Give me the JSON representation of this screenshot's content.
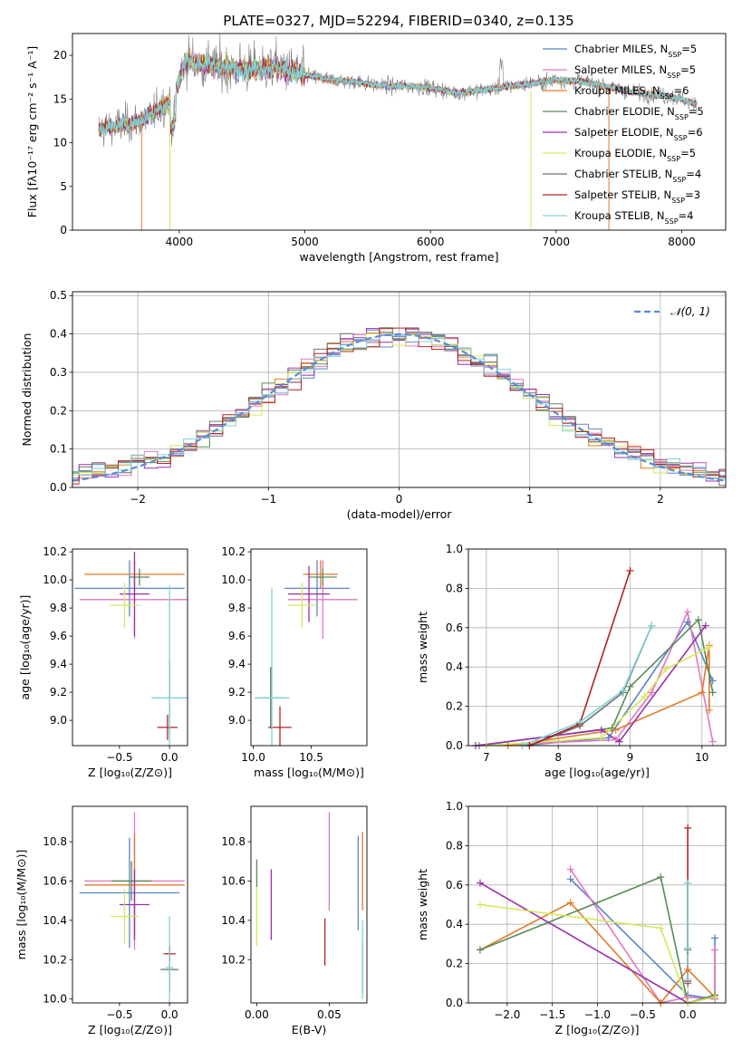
{
  "title": "PLATE=0327, MJD=52294, FIBERID=0340, z=0.135",
  "colors": {
    "chabrier_miles": "#5b84c4",
    "salpeter_miles": "#e377c2",
    "kroupa_miles": "#e07b2a",
    "chabrier_elodie": "#5a8a5a",
    "salpeter_elodie": "#9b2fae",
    "kroupa_elodie": "#d4ea5a",
    "chabrier_stelib": "#707070",
    "salpeter_stelib": "#b22222",
    "kroupa_stelib": "#7fd3d8"
  },
  "chart_data": [
    {
      "type": "line",
      "title": "PLATE=0327, MJD=52294, FIBERID=0340, z=0.135",
      "xlabel": "wavelength [Angstrom, rest frame]",
      "ylabel": "Flux [fλ10⁻¹⁷ erg cm⁻² s⁻¹ A⁻¹]",
      "xlim": [
        3150,
        8350
      ],
      "ylim": [
        0,
        22.5
      ],
      "xticks": [
        4000,
        5000,
        6000,
        7000,
        8000
      ],
      "yticks": [
        0,
        5,
        10,
        15,
        20
      ],
      "legend_position": "top-right",
      "series": [
        {
          "name": "Chabrier MILES, N",
          "nsub": "SSP",
          "nval": "=5"
        },
        {
          "name": "Salpeter MILES, N",
          "nsub": "SSP",
          "nval": "=5"
        },
        {
          "name": "Kroupa MILES, N",
          "nsub": "SSP",
          "nval": "=6"
        },
        {
          "name": "Chabrier ELODIE, N",
          "nsub": "SSP",
          "nval": "=5"
        },
        {
          "name": "Salpeter ELODIE, N",
          "nsub": "SSP",
          "nval": "=6"
        },
        {
          "name": "Kroupa ELODIE, N",
          "nsub": "SSP",
          "nval": "=5"
        },
        {
          "name": "Chabrier STELIB, N",
          "nsub": "SSP",
          "nval": "=4"
        },
        {
          "name": "Salpeter STELIB, N",
          "nsub": "SSP",
          "nval": "=3"
        },
        {
          "name": "Kroupa STELIB, N",
          "nsub": "SSP",
          "nval": "=4"
        }
      ],
      "continuum_x": [
        3350,
        3700,
        3800,
        3950,
        4050,
        4200,
        4400,
        4600,
        4800,
        5000,
        5200,
        5400,
        5600,
        5800,
        6000,
        6200,
        6400,
        6600,
        6800,
        7000,
        7200,
        7400,
        7600,
        7800,
        8000,
        8100
      ],
      "continuum_y": [
        11.5,
        12.5,
        13.5,
        15,
        19.5,
        19,
        18.5,
        18.5,
        18.6,
        17.8,
        17.2,
        17,
        16.5,
        16.5,
        16.3,
        15.7,
        16,
        16.4,
        16.8,
        17.2,
        17,
        16.5,
        15.8,
        15.5,
        15,
        14.5
      ]
    },
    {
      "type": "line",
      "xlabel": "(data-model)/error",
      "ylabel": "Normed distribution",
      "xlim": [
        -2.5,
        2.5
      ],
      "ylim": [
        0,
        0.51
      ],
      "xticks": [
        -2,
        -1,
        0,
        1,
        2
      ],
      "yticks": [
        0.0,
        0.1,
        0.2,
        0.3,
        0.4,
        0.5
      ],
      "legend": "𝒩(0, 1)",
      "legend_position": "top-right",
      "grid": true,
      "bin_width": 0.1
    },
    {
      "type": "scatter",
      "xlabel": "Z [log₁₀(Z/Z⊙)]",
      "ylabel": "age  [log₁₀(age/yr)]",
      "xlim": [
        -0.97,
        0.18
      ],
      "ylim": [
        8.82,
        10.22
      ],
      "xticks": [
        -0.5,
        0.0
      ],
      "yticks": [
        9.0,
        9.2,
        9.4,
        9.6,
        9.8,
        10.0,
        10.2
      ],
      "points": [
        {
          "series": "chabrier_miles",
          "x": -0.4,
          "xerr": 0.55,
          "y": 9.94,
          "yerr": 0.2
        },
        {
          "series": "salpeter_miles",
          "x": -0.35,
          "xerr": 0.55,
          "y": 9.86,
          "yerr": 0.28
        },
        {
          "series": "kroupa_miles",
          "x": -0.35,
          "xerr": 0.5,
          "y": 10.04,
          "yerr": 0.1
        },
        {
          "series": "chabrier_elodie",
          "x": -0.3,
          "xerr": 0.1,
          "y": 10.02,
          "yerr": 0.06
        },
        {
          "series": "salpeter_elodie",
          "x": -0.35,
          "xerr": 0.15,
          "y": 9.9,
          "yerr": 0.3
        },
        {
          "series": "kroupa_elodie",
          "x": -0.45,
          "xerr": 0.15,
          "y": 9.82,
          "yerr": 0.16
        },
        {
          "series": "chabrier_stelib",
          "x": 0.0,
          "xerr": 0.01,
          "y": 9.16,
          "yerr": 0.26
        },
        {
          "series": "salpeter_stelib",
          "x": -0.02,
          "xerr": 0.1,
          "y": 8.95,
          "yerr": 0.09
        },
        {
          "series": "kroupa_stelib",
          "x": 0.0,
          "xerr": 0.18,
          "y": 9.16,
          "yerr": 0.8
        }
      ]
    },
    {
      "type": "scatter",
      "xlabel": "mass [log₁₀(M/M⊙)]",
      "xlim": [
        9.98,
        10.98
      ],
      "ylim": [
        8.82,
        10.22
      ],
      "xticks": [
        10.0,
        10.5
      ],
      "yticks": [
        9.0,
        9.2,
        9.4,
        9.6,
        9.8,
        10.0,
        10.2
      ],
      "points": [
        {
          "series": "chabrier_miles",
          "x": 10.55,
          "xerr": 0.28,
          "y": 9.94,
          "yerr": 0.2
        },
        {
          "series": "salpeter_miles",
          "x": 10.6,
          "xerr": 0.3,
          "y": 9.86,
          "yerr": 0.28
        },
        {
          "series": "kroupa_miles",
          "x": 10.58,
          "xerr": 0.15,
          "y": 10.04,
          "yerr": 0.1
        },
        {
          "series": "chabrier_elodie",
          "x": 10.6,
          "xerr": 0.12,
          "y": 10.02,
          "yerr": 0.06
        },
        {
          "series": "salpeter_elodie",
          "x": 10.48,
          "xerr": 0.18,
          "y": 9.9,
          "yerr": 0.2
        },
        {
          "series": "kroupa_elodie",
          "x": 10.42,
          "xerr": 0.12,
          "y": 9.82,
          "yerr": 0.16
        },
        {
          "series": "chabrier_stelib",
          "x": 10.15,
          "xerr": 0.12,
          "y": 9.16,
          "yerr": 0.22
        },
        {
          "series": "salpeter_stelib",
          "x": 10.23,
          "xerr": 0.1,
          "y": 8.95,
          "yerr": 0.15
        },
        {
          "series": "kroupa_stelib",
          "x": 10.16,
          "xerr": 0.15,
          "y": 9.16,
          "yerr": 0.78
        }
      ]
    },
    {
      "type": "line",
      "xlabel": "age  [log₁₀(age/yr)]",
      "ylabel": "mass weight",
      "xlim": [
        6.75,
        10.33
      ],
      "ylim": [
        0,
        1.0
      ],
      "xticks": [
        7,
        8,
        9,
        10
      ],
      "yticks": [
        0.0,
        0.2,
        0.4,
        0.6,
        0.8,
        1.0
      ],
      "grid": true,
      "series": [
        {
          "key": "chabrier_miles",
          "x": [
            7.5,
            8.7,
            9.8,
            10.15
          ],
          "y": [
            0.0,
            0.04,
            0.63,
            0.33
          ]
        },
        {
          "key": "salpeter_miles",
          "x": [
            7.0,
            8.8,
            9.3,
            9.8,
            10.15
          ],
          "y": [
            0.0,
            0.03,
            0.27,
            0.68,
            0.02
          ]
        },
        {
          "key": "kroupa_miles",
          "x": [
            7.3,
            8.8,
            10.0,
            10.1,
            10.1
          ],
          "y": [
            0.0,
            0.08,
            0.27,
            0.51,
            0.18
          ]
        },
        {
          "key": "chabrier_elodie",
          "x": [
            6.9,
            8.75,
            9.0,
            9.95,
            10.15
          ],
          "y": [
            0.0,
            0.09,
            0.3,
            0.64,
            0.27
          ]
        },
        {
          "key": "salpeter_elodie",
          "x": [
            6.85,
            8.6,
            8.85,
            10.05
          ],
          "y": [
            0.0,
            0.08,
            0.02,
            0.61
          ]
        },
        {
          "key": "kroupa_elodie",
          "x": [
            7.0,
            8.6,
            9.2,
            9.5,
            10.1
          ],
          "y": [
            0.0,
            0.04,
            0.25,
            0.39,
            0.5
          ]
        },
        {
          "key": "chabrier_stelib",
          "x": [
            7.6,
            8.3,
            8.9,
            9.3
          ],
          "y": [
            0.0,
            0.1,
            0.27,
            0.61
          ]
        },
        {
          "key": "salpeter_stelib",
          "x": [
            7.6,
            8.3,
            9.0
          ],
          "y": [
            0.0,
            0.11,
            0.89
          ]
        },
        {
          "key": "kroupa_stelib",
          "x": [
            7.5,
            8.3,
            8.9,
            9.3
          ],
          "y": [
            0.0,
            0.12,
            0.28,
            0.61
          ]
        }
      ]
    },
    {
      "type": "scatter",
      "xlabel": "Z [log₁₀(Z/Z⊙)]",
      "ylabel": "mass [log₁₀(M/M⊙)]",
      "xlim": [
        -0.97,
        0.18
      ],
      "ylim": [
        9.98,
        10.98
      ],
      "xticks": [
        -0.5,
        0.0
      ],
      "yticks": [
        10.0,
        10.2,
        10.4,
        10.6,
        10.8
      ],
      "points": [
        {
          "series": "chabrier_miles",
          "x": -0.4,
          "xerr": 0.5,
          "y": 10.54,
          "yerr": 0.28
        },
        {
          "series": "salpeter_miles",
          "x": -0.35,
          "xerr": 0.5,
          "y": 10.6,
          "yerr": 0.35
        },
        {
          "series": "kroupa_miles",
          "x": -0.35,
          "xerr": 0.5,
          "y": 10.58,
          "yerr": 0.26
        },
        {
          "series": "chabrier_elodie",
          "x": -0.38,
          "xerr": 0.2,
          "y": 10.6,
          "yerr": 0.1
        },
        {
          "series": "salpeter_elodie",
          "x": -0.35,
          "xerr": 0.15,
          "y": 10.48,
          "yerr": 0.18
        },
        {
          "series": "kroupa_elodie",
          "x": -0.45,
          "xerr": 0.14,
          "y": 10.42,
          "yerr": 0.14
        },
        {
          "series": "chabrier_stelib",
          "x": 0.0,
          "xerr": 0.09,
          "y": 10.15,
          "yerr": 0.12
        },
        {
          "series": "salpeter_stelib",
          "x": 0.0,
          "xerr": 0.06,
          "y": 10.23,
          "yerr": 0.04
        },
        {
          "series": "kroupa_stelib",
          "x": 0.0,
          "xerr": 0.04,
          "y": 10.16,
          "yerr": 0.26
        }
      ]
    },
    {
      "type": "scatter",
      "xlabel": "E(B-V)",
      "xlim": [
        -0.004,
        0.076
      ],
      "ylim": [
        9.98,
        10.98
      ],
      "xticks": [
        0.0,
        0.05
      ],
      "yticks": [
        10.2,
        10.4,
        10.6,
        10.8
      ],
      "points": [
        {
          "series": "chabrier_miles",
          "x": 0.07,
          "y": 10.59,
          "yerr": 0.24
        },
        {
          "series": "salpeter_miles",
          "x": 0.05,
          "y": 10.7,
          "yerr": 0.25
        },
        {
          "series": "kroupa_miles",
          "x": 0.073,
          "y": 10.65,
          "yerr": 0.2
        },
        {
          "series": "chabrier_elodie",
          "x": 0.0,
          "y": 10.64,
          "yerr": 0.07
        },
        {
          "series": "salpeter_elodie",
          "x": 0.01,
          "y": 10.48,
          "yerr": 0.18
        },
        {
          "series": "kroupa_elodie",
          "x": 0.0,
          "y": 10.42,
          "yerr": 0.15
        },
        {
          "series": "chabrier_stelib",
          "x": 0.073,
          "y": 10.16,
          "yerr": 0.13
        },
        {
          "series": "salpeter_stelib",
          "x": 0.047,
          "y": 10.29,
          "yerr": 0.12
        },
        {
          "series": "kroupa_stelib",
          "x": 0.073,
          "y": 10.2,
          "yerr": 0.2
        }
      ]
    },
    {
      "type": "line",
      "xlabel": "Z [log₁₀(Z/Z⊙)]",
      "ylabel": "mass weight",
      "xlim": [
        -2.43,
        0.42
      ],
      "ylim": [
        0,
        1.0
      ],
      "xticks": [
        -2.0,
        -1.5,
        -1.0,
        -0.5,
        0.0
      ],
      "yticks": [
        0.0,
        0.2,
        0.4,
        0.6,
        0.8,
        1.0
      ],
      "grid": true,
      "series": [
        {
          "key": "chabrier_miles",
          "x": [
            -1.3,
            0.0,
            0.3,
            0.3
          ],
          "y": [
            0.63,
            0.04,
            0.02,
            0.33
          ]
        },
        {
          "key": "salpeter_miles",
          "x": [
            -1.3,
            -0.3,
            0.0,
            0.3,
            0.3
          ],
          "y": [
            0.68,
            0.0,
            0.03,
            0.02,
            0.27
          ]
        },
        {
          "key": "kroupa_miles",
          "x": [
            -2.3,
            -1.3,
            -0.3,
            0.0,
            0.3,
            0.3
          ],
          "y": [
            0.27,
            0.51,
            0.0,
            0.17,
            0.03,
            0.04
          ]
        },
        {
          "key": "chabrier_elodie",
          "x": [
            -2.3,
            -0.3,
            0.0,
            0.3
          ],
          "y": [
            0.27,
            0.64,
            0.0,
            0.04
          ]
        },
        {
          "key": "salpeter_elodie",
          "x": [
            -2.3,
            0.0,
            0.3
          ],
          "y": [
            0.61,
            0.0,
            0.03
          ]
        },
        {
          "key": "kroupa_elodie",
          "x": [
            -2.3,
            -0.3,
            0.0,
            0.3
          ],
          "y": [
            0.5,
            0.38,
            0.0,
            0.03
          ]
        },
        {
          "key": "chabrier_stelib",
          "x": [
            0.0,
            0.0,
            0.0
          ],
          "y": [
            0.1,
            0.27,
            0.61
          ]
        },
        {
          "key": "salpeter_stelib",
          "x": [
            0.0,
            0.0
          ],
          "y": [
            0.11,
            0.89
          ]
        },
        {
          "key": "kroupa_stelib",
          "x": [
            0.0,
            0.0,
            0.0
          ],
          "y": [
            0.12,
            0.28,
            0.61
          ]
        }
      ]
    }
  ]
}
